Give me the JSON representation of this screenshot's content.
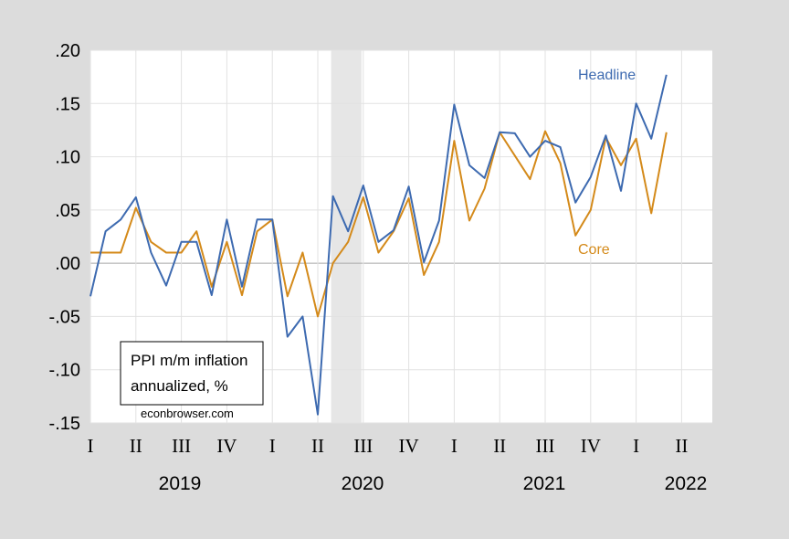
{
  "chart_data": {
    "type": "line",
    "annotation_lines": [
      "PPI m/m inflation",
      "annualized, %"
    ],
    "source": "econbrowser.com",
    "ylim": [
      -0.15,
      0.2
    ],
    "yticks": [
      ".20",
      ".15",
      ".10",
      ".05",
      ".00",
      "-.05",
      "-.10",
      "-.15"
    ],
    "quarter_labels": [
      "I",
      "II",
      "III",
      "IV",
      "I",
      "II",
      "III",
      "IV",
      "I",
      "II",
      "III",
      "IV",
      "I",
      "II"
    ],
    "year_labels": [
      "2019",
      "2020",
      "2021",
      "2022"
    ],
    "recession_shading": {
      "start_month_index": 16,
      "end_month_index": 18
    },
    "grid": true,
    "series": [
      {
        "name": "Headline",
        "color": "#3d6ab0",
        "values": [
          -0.031,
          0.03,
          0.041,
          0.062,
          0.01,
          -0.021,
          0.02,
          0.02,
          -0.03,
          0.041,
          -0.022,
          0.041,
          0.041,
          -0.069,
          -0.05,
          -0.142,
          0.063,
          0.03,
          0.073,
          0.02,
          0.031,
          0.072,
          0.001,
          0.04,
          0.149,
          0.092,
          0.08,
          0.123,
          0.122,
          0.1,
          0.115,
          0.109,
          0.057,
          0.081,
          0.12,
          0.068,
          0.15,
          0.117,
          0.177
        ]
      },
      {
        "name": "Core",
        "color": "#d48a1a",
        "values": [
          0.01,
          0.01,
          0.01,
          0.052,
          0.02,
          0.01,
          0.01,
          0.03,
          -0.022,
          0.02,
          -0.03,
          0.03,
          0.041,
          -0.031,
          0.01,
          -0.05,
          0.0,
          0.02,
          0.062,
          0.01,
          0.03,
          0.061,
          -0.011,
          0.02,
          0.115,
          0.04,
          0.07,
          0.123,
          0.101,
          0.079,
          0.124,
          0.094,
          0.026,
          0.05,
          0.118,
          0.092,
          0.117,
          0.047,
          0.123
        ]
      }
    ]
  }
}
